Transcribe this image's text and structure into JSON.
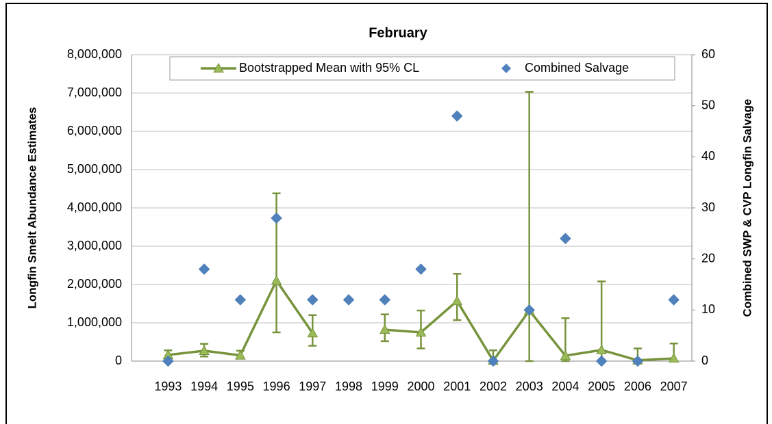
{
  "chart_data": {
    "type": "line",
    "title": "February",
    "y_label": "Longfin Smelt Abundance Estimates",
    "y2_label": "Combined SWP & CVP Longfin  Salvage",
    "categories": [
      "1993",
      "1994",
      "1995",
      "1996",
      "1997",
      "1998",
      "1999",
      "2000",
      "2001",
      "2002",
      "2003",
      "2004",
      "2005",
      "2006",
      "2007"
    ],
    "series": [
      {
        "name": "Bootstrapped Mean with 95% CL",
        "color": "#77933c",
        "marker_color": "#9bbb59",
        "marker": "triangle",
        "axis": "y",
        "values": [
          160000,
          270000,
          150000,
          2100000,
          730000,
          null,
          820000,
          750000,
          1570000,
          10000,
          1320000,
          140000,
          290000,
          20000,
          70000
        ],
        "lower": [
          50000,
          120000,
          80000,
          750000,
          400000,
          null,
          520000,
          330000,
          1070000,
          0,
          0,
          0,
          0,
          0,
          0
        ],
        "upper": [
          280000,
          450000,
          270000,
          4380000,
          1200000,
          null,
          1220000,
          1320000,
          2280000,
          280000,
          7030000,
          1120000,
          2080000,
          330000,
          460000
        ]
      },
      {
        "name": "Combined Salvage",
        "color": "#4f81bd",
        "marker": "diamond",
        "axis": "y2",
        "values": [
          0,
          18,
          12,
          28,
          12,
          12,
          12,
          18,
          48,
          0,
          10,
          24,
          0,
          0,
          12
        ]
      }
    ],
    "ylim": [
      0,
      8000000
    ],
    "yticks": [
      {
        "value": 0,
        "label": "0"
      },
      {
        "value": 1000000,
        "label": "1,000,000"
      },
      {
        "value": 2000000,
        "label": "2,000,000"
      },
      {
        "value": 3000000,
        "label": "3,000,000"
      },
      {
        "value": 4000000,
        "label": "4,000,000"
      },
      {
        "value": 5000000,
        "label": "5,000,000"
      },
      {
        "value": 6000000,
        "label": "6,000,000"
      },
      {
        "value": 7000000,
        "label": "7,000,000"
      },
      {
        "value": 8000000,
        "label": "8,000,000"
      }
    ],
    "y2lim": [
      0,
      60
    ],
    "y2ticks": [
      0,
      10,
      20,
      30,
      40,
      50,
      60
    ],
    "grid": true,
    "legend": "top"
  }
}
